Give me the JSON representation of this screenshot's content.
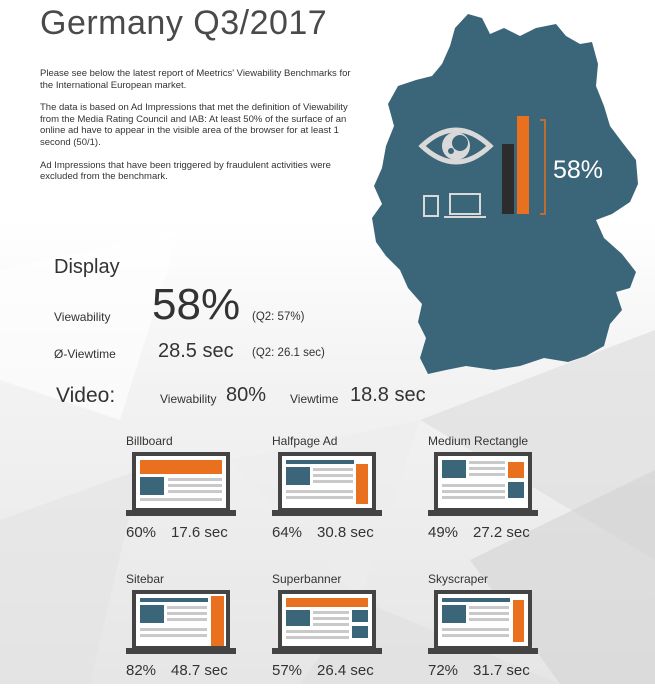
{
  "title": "Germany Q3/2017",
  "intro": {
    "p1": "Please see below the latest report of Meetrics' Viewability Benchmarks for the International European market.",
    "p2": "The data is based on Ad Impressions that met the definition of Viewability from the Media Rating Council and IAB: At least 50% of the surface of an online ad have to appear in the visible area of the browser for at least 1 second (50/1).",
    "p3": "Ad Impressions that have been triggered by fraudulent activities were excluded from the benchmark."
  },
  "map": {
    "viewability_pct": "58%",
    "bar_levels": {
      "dark": 0.48,
      "orange": 0.68
    }
  },
  "display": {
    "heading": "Display",
    "viewability_label": "Viewability",
    "viewability_value": "58%",
    "viewability_prev": "(Q2: 57%)",
    "viewtime_label": "Ø-Viewtime",
    "viewtime_value": "28.5 sec",
    "viewtime_prev": "(Q2: 26.1 sec)"
  },
  "video": {
    "heading": "Video:",
    "viewability_label": "Viewability",
    "viewability_value": "80%",
    "viewtime_label": "Viewtime",
    "viewtime_value": "18.8 sec"
  },
  "formats": [
    {
      "name": "Billboard",
      "pct": "60%",
      "sec": "17.6 sec"
    },
    {
      "name": "Halfpage Ad",
      "pct": "64%",
      "sec": "30.8 sec"
    },
    {
      "name": "Medium Rectangle",
      "pct": "49%",
      "sec": "27.2 sec"
    },
    {
      "name": "Sitebar",
      "pct": "82%",
      "sec": "48.7 sec"
    },
    {
      "name": "Superbanner",
      "pct": "57%",
      "sec": "26.4 sec"
    },
    {
      "name": "Skyscraper",
      "pct": "72%",
      "sec": "31.7 sec"
    }
  ],
  "colors": {
    "map": "#3b6579",
    "orange": "#e8701e",
    "dark_bar": "#2c2c2c",
    "text": "#333333",
    "screen_blue": "#3b6579",
    "screen_line": "#c9c9c9"
  }
}
